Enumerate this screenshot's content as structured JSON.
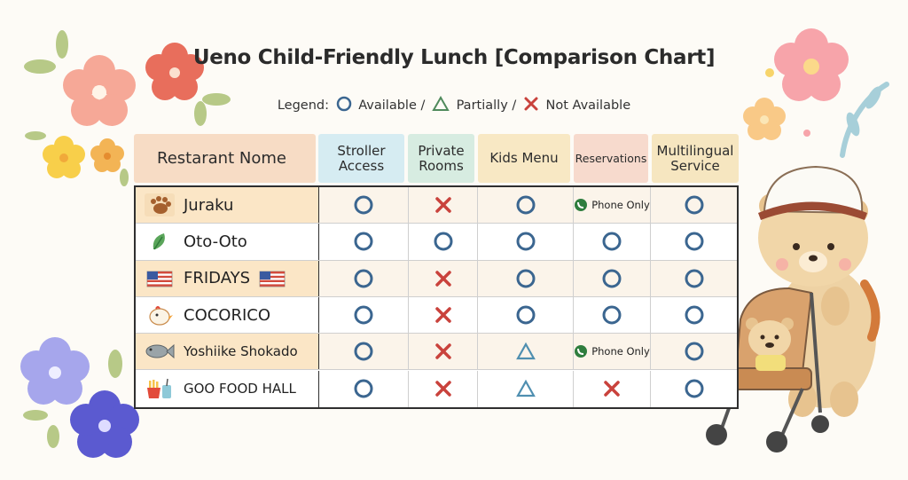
{
  "title": "Ueno Child-Friendly Lunch [Comparison Chart]",
  "legend": {
    "prefix": "Legend:",
    "available": "Available /",
    "partially": "Partially /",
    "not_available": "Not Available"
  },
  "headers": {
    "name": "Restarant Nome",
    "stroller": "Stroller Access",
    "private": "Private Rooms",
    "kids": "Kids Menu",
    "reservations": "Reservations",
    "multilingual": "Multilingual Service"
  },
  "phone_only": "Phone Only",
  "rows": [
    {
      "name": "Juraku",
      "icon": "paw-icon",
      "cells": [
        "available",
        "not_available",
        "available",
        "phone_only",
        "available"
      ]
    },
    {
      "name": "Oto-Oto",
      "icon": "leaf-icon",
      "cells": [
        "available",
        "available",
        "available",
        "available",
        "available"
      ]
    },
    {
      "name": "FRIDAYS",
      "icon": "us-flag-icon",
      "cells": [
        "available",
        "not_available",
        "available",
        "available",
        "available"
      ]
    },
    {
      "name": "COCORICO",
      "icon": "chick-icon",
      "cells": [
        "available",
        "not_available",
        "available",
        "available",
        "available"
      ]
    },
    {
      "name": "Yoshiike Shokado",
      "icon": "fish-icon",
      "cells": [
        "available",
        "not_available",
        "partially",
        "phone_only",
        "available"
      ]
    },
    {
      "name": "GOO FOOD HALL",
      "icon": "fries-drink-icon",
      "cells": [
        "available",
        "not_available",
        "partially",
        "not_available",
        "available"
      ]
    }
  ],
  "colors": {
    "circle": "#3b6690",
    "cross": "#c9423c",
    "triangle": "#4f8fb0",
    "header_name": "#f7dcc5",
    "header_stroller": "#d6ecf2",
    "header_private": "#d7ece1",
    "header_kids": "#f8e8c4",
    "header_reservations": "#f7dacd",
    "header_multilingual": "#f6e6c0"
  }
}
